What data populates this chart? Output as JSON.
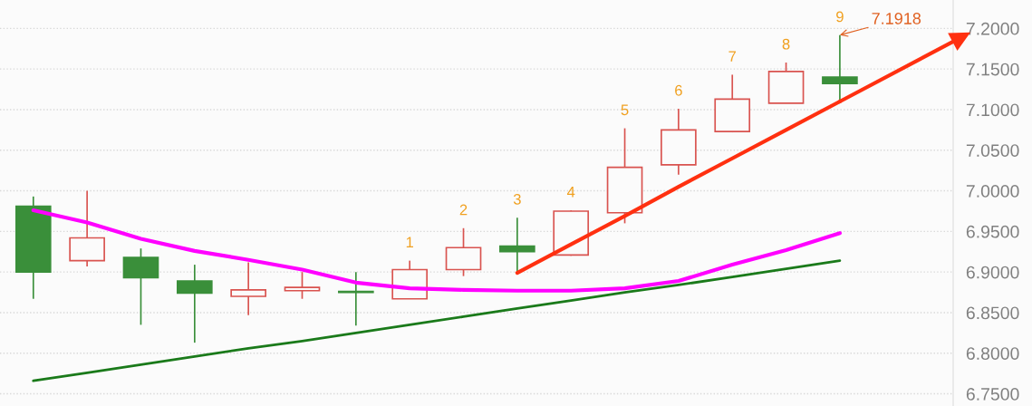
{
  "chart_data": {
    "type": "candlestick",
    "categories": [
      null,
      null,
      null,
      null,
      null,
      null,
      null,
      null,
      null,
      null,
      null,
      null,
      null,
      null,
      null,
      null
    ],
    "ohlc": [
      [
        6.981,
        6.993,
        6.867,
        6.9
      ],
      [
        6.914,
        7.0,
        6.907,
        6.942
      ],
      [
        6.918,
        6.929,
        6.835,
        6.893
      ],
      [
        6.889,
        6.909,
        6.813,
        6.874
      ],
      [
        6.87,
        6.912,
        6.847,
        6.878
      ],
      [
        6.877,
        6.9,
        6.867,
        6.881
      ],
      [
        6.876,
        6.9,
        6.834,
        6.875
      ],
      [
        6.867,
        6.914,
        6.867,
        6.903
      ],
      [
        6.903,
        6.954,
        6.895,
        6.93
      ],
      [
        6.932,
        6.967,
        6.9,
        6.925
      ],
      [
        6.921,
        6.976,
        6.92,
        6.975
      ],
      [
        6.973,
        7.077,
        6.96,
        7.029
      ],
      [
        7.032,
        7.101,
        7.02,
        7.075
      ],
      [
        7.073,
        7.143,
        7.072,
        7.113
      ],
      [
        7.108,
        7.158,
        7.108,
        7.147
      ],
      [
        7.14,
        7.1918,
        7.112,
        7.132
      ]
    ],
    "colors": [
      "#3a8f3a",
      "#d9534f",
      "#3a8f3a",
      "#3a8f3a",
      "#d9534f",
      "#d9534f",
      "#3a8f3a",
      "#d9534f",
      "#d9534f",
      "#3a8f3a",
      "#d9534f",
      "#d9534f",
      "#d9534f",
      "#d9534f",
      "#d9534f",
      "#3a8f3a"
    ],
    "value_labels": [
      null,
      null,
      null,
      null,
      null,
      null,
      null,
      "1",
      "2",
      "3",
      "4",
      "5",
      "6",
      "7",
      "8",
      "9"
    ],
    "series": [
      {
        "type": "line",
        "color": "#ff00ff",
        "values": [
          6.976,
          6.961,
          6.941,
          6.926,
          6.915,
          6.903,
          6.887,
          6.88,
          6.878,
          6.877,
          6.877,
          6.88,
          6.889,
          6.909,
          6.927,
          6.948
        ]
      },
      {
        "type": "line",
        "color": "#1a7a1a",
        "values": [
          6.766,
          6.776,
          6.786,
          6.796,
          6.806,
          6.815,
          6.825,
          6.835,
          6.845,
          6.855,
          6.865,
          6.875,
          6.884,
          6.894,
          6.904,
          6.914
        ]
      },
      {
        "type": "line",
        "color": "#ff3010",
        "values": [
          null,
          null,
          null,
          null,
          null,
          null,
          null,
          null,
          null,
          6.899,
          6.934,
          6.969,
          7.005,
          7.04,
          7.075,
          7.11
        ]
      }
    ],
    "annotations": [
      "7.1918"
    ],
    "ylim": [
      6.735,
      7.235
    ],
    "yticks": [
      {
        "value": 6.75,
        "label": "6.7500"
      },
      {
        "value": 6.8,
        "label": "6.8000"
      },
      {
        "value": 6.85,
        "label": "6.8500"
      },
      {
        "value": 6.9,
        "label": "6.9000"
      },
      {
        "value": 6.95,
        "label": "6.9500"
      },
      {
        "value": 7.0,
        "label": "7.0000"
      },
      {
        "value": 7.05,
        "label": "7.0500"
      },
      {
        "value": 7.1,
        "label": "7.1000"
      },
      {
        "value": 7.15,
        "label": "7.1500"
      },
      {
        "value": 7.2,
        "label": "7.2000"
      }
    ],
    "grid": "y",
    "tick_labels": "y"
  }
}
